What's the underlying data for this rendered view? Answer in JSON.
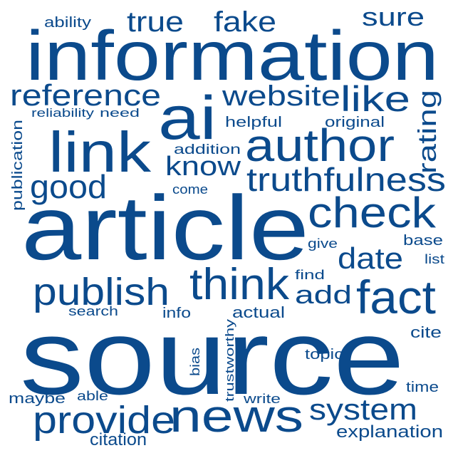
{
  "style": {
    "word_color": "#0b4a8c",
    "background": "#ffffff"
  },
  "words": {
    "information": "information",
    "source": "source",
    "article": "article",
    "ai": "ai",
    "link": "link",
    "author": "author",
    "check": "check",
    "news": "news",
    "think": "think",
    "fact": "fact",
    "publish": "publish",
    "provide": "provide",
    "truthfulness": "truthfulness",
    "website": "website",
    "like": "like",
    "reference": "reference",
    "good": "good",
    "system": "system",
    "date": "date",
    "true": "true",
    "fake": "fake",
    "sure": "sure",
    "know": "know",
    "add": "add",
    "rating": "rating",
    "explanation": "explanation",
    "citation": "citation",
    "ability": "ability",
    "reliability": "reliability",
    "need": "need",
    "helpful": "helpful",
    "original": "original",
    "addition": "addition",
    "publication": "publication",
    "come": "come",
    "give": "give",
    "base": "base",
    "list": "list",
    "find": "find",
    "search": "search",
    "info": "info",
    "actual": "actual",
    "trustworthy": "trustworthy",
    "cite": "cite",
    "topic": "topic",
    "bias": "bias",
    "time": "time",
    "maybe": "maybe",
    "able": "able",
    "write": "write"
  }
}
